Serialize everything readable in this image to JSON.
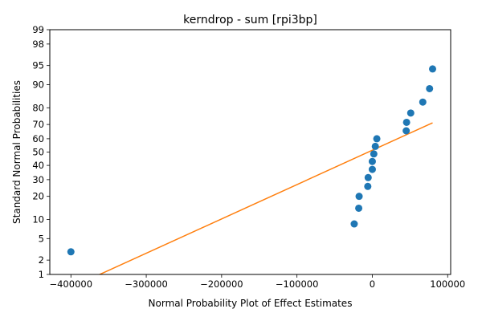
{
  "chart_data": {
    "type": "scatter",
    "title": "kerndrop - sum [rpi3bp]",
    "xlabel": "Normal Probability Plot of Effect Estimates",
    "ylabel": "Standard Normal Probabilities",
    "x_scale": "linear",
    "y_scale": "normal-probability",
    "xlim": [
      -428000,
      104000
    ],
    "ylim": [
      1,
      99
    ],
    "x_ticks": [
      -400000,
      -300000,
      -200000,
      -100000,
      0,
      100000
    ],
    "x_tick_labels": [
      "−400000",
      "−300000",
      "−200000",
      "−100000",
      "0",
      "100000"
    ],
    "y_ticks": [
      1,
      2,
      5,
      10,
      20,
      30,
      40,
      50,
      60,
      70,
      80,
      90,
      95,
      98,
      99
    ],
    "y_tick_labels": [
      "1",
      "2",
      "5",
      "10",
      "20",
      "30",
      "40",
      "50",
      "60",
      "70",
      "80",
      "90",
      "95",
      "98",
      "99"
    ],
    "grid": false,
    "legend": "none",
    "colors": {
      "points": "#1f77b4",
      "fit_line": "#ff7f0e"
    },
    "series": [
      {
        "kind": "points",
        "x": [
          -400000,
          -24000,
          -18000,
          -17500,
          -6000,
          -5500,
          0,
          0,
          2000,
          4000,
          6000,
          45000,
          45500,
          51000,
          67000,
          76000,
          80000
        ],
        "y": [
          2.9,
          8.6,
          14.3,
          20.0,
          25.7,
          31.4,
          37.1,
          42.9,
          48.6,
          54.3,
          60.0,
          65.7,
          71.4,
          77.1,
          82.9,
          88.6,
          94.3
        ]
      },
      {
        "kind": "line",
        "x": [
          -400000,
          80000
        ],
        "y": [
          0.5,
          71.1
        ]
      }
    ]
  }
}
